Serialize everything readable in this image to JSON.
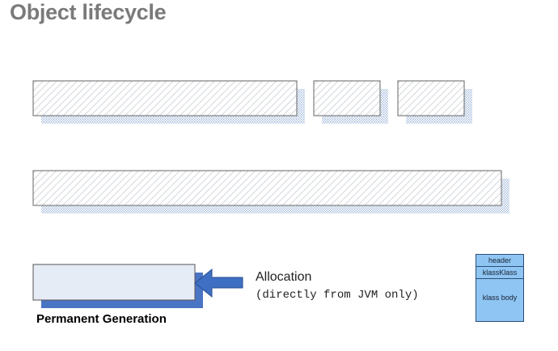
{
  "title": "Object lifecycle",
  "allocation": {
    "label": "Allocation",
    "sublabel": "(directly from JVM only)"
  },
  "permanent_generation": {
    "label": "Permanent Generation"
  },
  "klass_layout": {
    "header": "header",
    "klass_klass": "klassKlass",
    "body": "klass body"
  },
  "colors": {
    "title": "#7a7a7a",
    "hatch": "#c8cdd3",
    "shadow_dots": "#9ab2d8",
    "perm_fill": "#e6ecf6",
    "perm_shadow": "#4a74c4",
    "arrow": "#3f6fc2",
    "klass_fill": "#8ec5f3"
  }
}
